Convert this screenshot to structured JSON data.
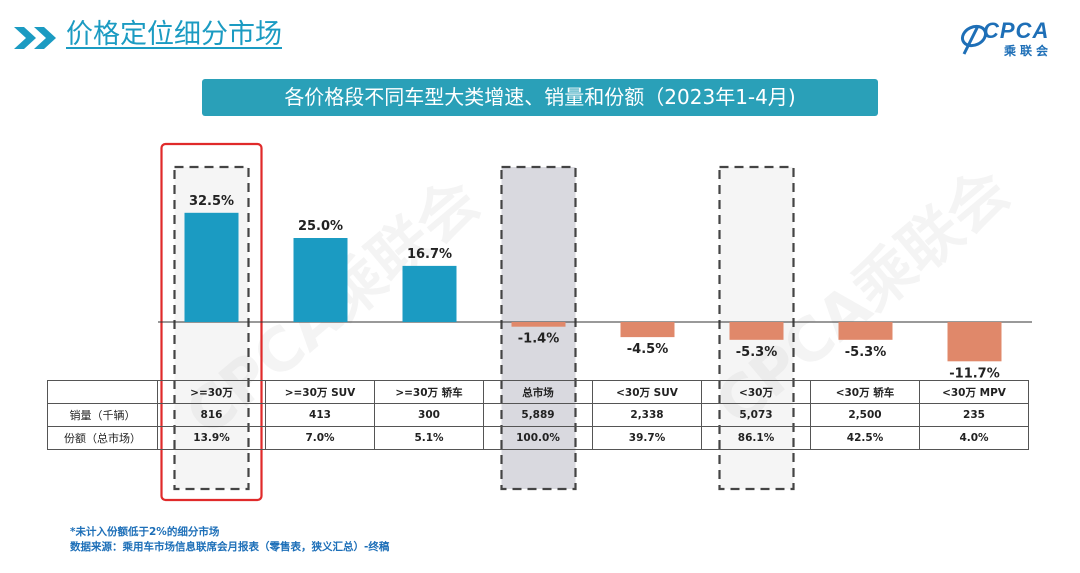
{
  "header": {
    "title": "价格定位细分市场",
    "logo_text": "CPCA",
    "logo_sub": "乘联会"
  },
  "banner": {
    "text": "各价格段不同车型大类增速、销量和份额（2023年1-4月)"
  },
  "watermark": "CPCA乘联会",
  "colors": {
    "positive": "#1b9bc2",
    "negative": "#e0886a",
    "accent": "#1b9bc2",
    "highlight_box": "#e02a2a"
  },
  "chart_data": {
    "type": "bar",
    "title": "各价格段不同车型大类增速、销量和份额（2023年1-4月)",
    "categories": [
      ">=30万",
      ">=30万 SUV",
      ">=30万 轿车",
      "总市场",
      "<30万 SUV",
      "<30万",
      "<30万 轿车",
      "<30万 MPV"
    ],
    "values": [
      32.5,
      25.0,
      16.7,
      -1.4,
      -4.5,
      -5.3,
      -5.3,
      -11.7
    ],
    "value_labels": [
      "32.5%",
      "25.0%",
      "16.7%",
      "-1.4%",
      "-4.5%",
      "-5.3%",
      "-5.3%",
      "-11.7%"
    ],
    "unit": "%",
    "highlighted": [
      ">=30万",
      "总市场",
      "<30万"
    ],
    "ylim": [
      -12,
      33
    ]
  },
  "table": {
    "header_row": [
      "",
      ">=30万",
      ">=30万 SUV",
      ">=30万 轿车",
      "总市场",
      "<30万 SUV",
      "<30万",
      "<30万 轿车",
      "<30万 MPV"
    ],
    "rows": [
      {
        "label": "销量（千辆）",
        "cells": [
          "816",
          "413",
          "300",
          "5,889",
          "2,338",
          "5,073",
          "2,500",
          "235"
        ]
      },
      {
        "label": "份额（总市场）",
        "cells": [
          "13.9%",
          "7.0%",
          "5.1%",
          "100.0%",
          "39.7%",
          "86.1%",
          "42.5%",
          "4.0%"
        ]
      }
    ]
  },
  "footer": {
    "note": "*未计入份额低于2%的细分市场",
    "source": "数据来源：乘用车市场信息联席会月报表（零售表，狭义汇总）-终稿"
  }
}
